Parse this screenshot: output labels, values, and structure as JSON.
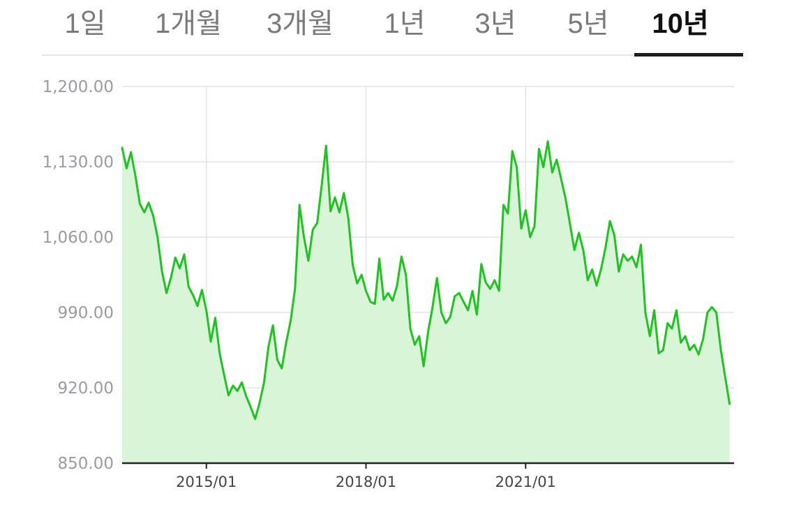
{
  "tabs": [
    {
      "label": "1일",
      "active": false
    },
    {
      "label": "1개월",
      "active": false
    },
    {
      "label": "3개월",
      "active": false
    },
    {
      "label": "1년",
      "active": false
    },
    {
      "label": "3년",
      "active": false
    },
    {
      "label": "5년",
      "active": false
    },
    {
      "label": "10년",
      "active": true
    }
  ],
  "colors": {
    "line": "#1ec41e",
    "area": "#d8f5d8",
    "grid": "#e3e3e3",
    "axis": "#222222",
    "active_tab_text": "#111111",
    "inactive_tab_text": "#7a7a7a"
  },
  "chart_data": {
    "type": "area",
    "x_tick_labels": [
      "2015/01",
      "2018/01",
      "2021/01"
    ],
    "y_tick_labels": [
      "1,200.00",
      "1,130.00",
      "1,060.00",
      "990.00",
      "920.00",
      "850.00"
    ],
    "ylim": [
      850,
      1200
    ],
    "grid": true,
    "series": [
      {
        "points": [
          [
            "2013-06",
            1143
          ],
          [
            "2013-07",
            1124
          ],
          [
            "2013-08",
            1139
          ],
          [
            "2013-09",
            1117
          ],
          [
            "2013-10",
            1091
          ],
          [
            "2013-11",
            1083
          ],
          [
            "2013-12",
            1092
          ],
          [
            "2014-01",
            1080
          ],
          [
            "2014-02",
            1060
          ],
          [
            "2014-03",
            1028
          ],
          [
            "2014-04",
            1008
          ],
          [
            "2014-05",
            1022
          ],
          [
            "2014-06",
            1041
          ],
          [
            "2014-07",
            1031
          ],
          [
            "2014-08",
            1044
          ],
          [
            "2014-09",
            1014
          ],
          [
            "2014-10",
            1006
          ],
          [
            "2014-11",
            996
          ],
          [
            "2014-12",
            1011
          ],
          [
            "2015-01",
            992
          ],
          [
            "2015-02",
            963
          ],
          [
            "2015-03",
            985
          ],
          [
            "2015-04",
            952
          ],
          [
            "2015-05",
            932
          ],
          [
            "2015-06",
            913
          ],
          [
            "2015-07",
            922
          ],
          [
            "2015-08",
            917
          ],
          [
            "2015-09",
            925
          ],
          [
            "2015-10",
            912
          ],
          [
            "2015-11",
            902
          ],
          [
            "2015-12",
            891
          ],
          [
            "2016-01",
            906
          ],
          [
            "2016-02",
            925
          ],
          [
            "2016-03",
            958
          ],
          [
            "2016-04",
            978
          ],
          [
            "2016-05",
            946
          ],
          [
            "2016-06",
            938
          ],
          [
            "2016-07",
            962
          ],
          [
            "2016-08",
            982
          ],
          [
            "2016-09",
            1012
          ],
          [
            "2016-10",
            1090
          ],
          [
            "2016-11",
            1060
          ],
          [
            "2016-12",
            1038
          ],
          [
            "2017-01",
            1067
          ],
          [
            "2017-02",
            1073
          ],
          [
            "2017-03",
            1108
          ],
          [
            "2017-04",
            1145
          ],
          [
            "2017-05",
            1084
          ],
          [
            "2017-06",
            1097
          ],
          [
            "2017-07",
            1083
          ],
          [
            "2017-08",
            1101
          ],
          [
            "2017-09",
            1078
          ],
          [
            "2017-10",
            1034
          ],
          [
            "2017-11",
            1017
          ],
          [
            "2017-12",
            1025
          ],
          [
            "2018-01",
            1010
          ],
          [
            "2018-02",
            1000
          ],
          [
            "2018-03",
            998
          ],
          [
            "2018-04",
            1040
          ],
          [
            "2018-05",
            1002
          ],
          [
            "2018-06",
            1008
          ],
          [
            "2018-07",
            1001
          ],
          [
            "2018-08",
            1015
          ],
          [
            "2018-09",
            1042
          ],
          [
            "2018-10",
            1025
          ],
          [
            "2018-11",
            975
          ],
          [
            "2018-12",
            960
          ],
          [
            "2019-01",
            968
          ],
          [
            "2019-02",
            940
          ],
          [
            "2019-03",
            972
          ],
          [
            "2019-04",
            995
          ],
          [
            "2019-05",
            1022
          ],
          [
            "2019-06",
            990
          ],
          [
            "2019-07",
            980
          ],
          [
            "2019-08",
            986
          ],
          [
            "2019-09",
            1005
          ],
          [
            "2019-10",
            1008
          ],
          [
            "2019-11",
            1000
          ],
          [
            "2019-12",
            992
          ],
          [
            "2020-01",
            1010
          ],
          [
            "2020-02",
            988
          ],
          [
            "2020-03",
            1035
          ],
          [
            "2020-04",
            1018
          ],
          [
            "2020-05",
            1012
          ],
          [
            "2020-06",
            1020
          ],
          [
            "2020-07",
            1010
          ],
          [
            "2020-08",
            1090
          ],
          [
            "2020-09",
            1082
          ],
          [
            "2020-10",
            1140
          ],
          [
            "2020-11",
            1125
          ],
          [
            "2020-12",
            1068
          ],
          [
            "2021-01",
            1085
          ],
          [
            "2021-02",
            1060
          ],
          [
            "2021-03",
            1070
          ],
          [
            "2021-04",
            1142
          ],
          [
            "2021-05",
            1125
          ],
          [
            "2021-06",
            1149
          ],
          [
            "2021-07",
            1120
          ],
          [
            "2021-08",
            1132
          ],
          [
            "2021-09",
            1114
          ],
          [
            "2021-10",
            1096
          ],
          [
            "2021-11",
            1072
          ],
          [
            "2021-12",
            1048
          ],
          [
            "2022-01",
            1064
          ],
          [
            "2022-02",
            1048
          ],
          [
            "2022-03",
            1020
          ],
          [
            "2022-04",
            1030
          ],
          [
            "2022-05",
            1015
          ],
          [
            "2022-06",
            1030
          ],
          [
            "2022-07",
            1050
          ],
          [
            "2022-08",
            1075
          ],
          [
            "2022-09",
            1062
          ],
          [
            "2022-10",
            1028
          ],
          [
            "2022-11",
            1044
          ],
          [
            "2022-12",
            1038
          ],
          [
            "2023-01",
            1042
          ],
          [
            "2023-02",
            1032
          ],
          [
            "2023-03",
            1053
          ],
          [
            "2023-04",
            990
          ],
          [
            "2023-05",
            968
          ],
          [
            "2023-06",
            992
          ],
          [
            "2023-07",
            952
          ],
          [
            "2023-08",
            955
          ],
          [
            "2023-09",
            980
          ],
          [
            "2023-10",
            975
          ],
          [
            "2023-11",
            992
          ],
          [
            "2023-12",
            962
          ],
          [
            "2024-01",
            968
          ],
          [
            "2024-02",
            955
          ],
          [
            "2024-03",
            960
          ],
          [
            "2024-04",
            951
          ],
          [
            "2024-05",
            965
          ],
          [
            "2024-06",
            990
          ],
          [
            "2024-07",
            995
          ],
          [
            "2024-08",
            990
          ],
          [
            "2024-09",
            956
          ],
          [
            "2024-10",
            930
          ],
          [
            "2024-11",
            905
          ]
        ]
      }
    ]
  }
}
